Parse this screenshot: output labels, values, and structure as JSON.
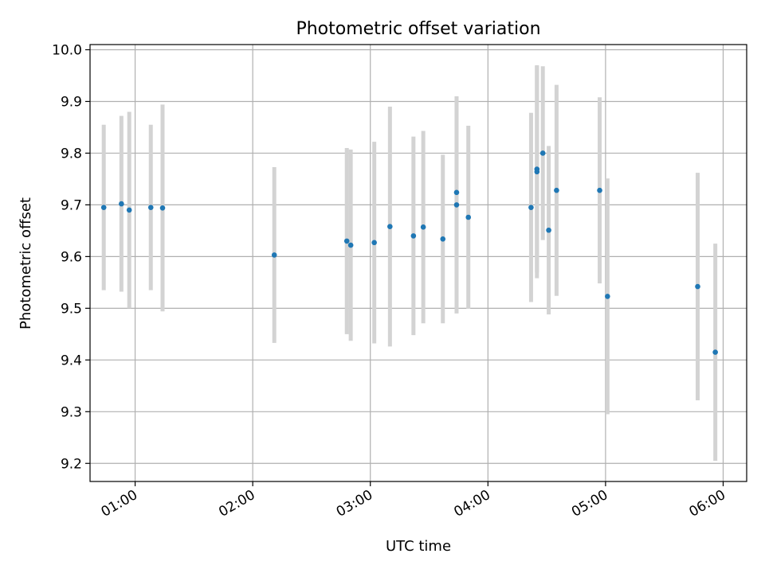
{
  "chart_data": {
    "type": "scatter",
    "title": "Photometric offset variation",
    "xlabel": "UTC time",
    "ylabel": "Photometric offset",
    "x_unit": "UTC time of day",
    "xlim": [
      "00:37",
      "06:12"
    ],
    "ylim": [
      9.165,
      10.01
    ],
    "grid": true,
    "x_ticks": [
      "01:00",
      "02:00",
      "03:00",
      "04:00",
      "05:00",
      "06:00"
    ],
    "y_ticks": [
      "9.2",
      "9.3",
      "9.4",
      "9.5",
      "9.6",
      "9.7",
      "9.8",
      "9.9",
      "10.0"
    ],
    "points": [
      {
        "x": "00:44",
        "y": 9.695,
        "err": 0.16
      },
      {
        "x": "00:53",
        "y": 9.702,
        "err": 0.17
      },
      {
        "x": "00:57",
        "y": 9.69,
        "err": 0.19
      },
      {
        "x": "01:08",
        "y": 9.695,
        "err": 0.16
      },
      {
        "x": "01:14",
        "y": 9.694,
        "err": 0.2
      },
      {
        "x": "02:11",
        "y": 9.603,
        "err": 0.17
      },
      {
        "x": "02:48",
        "y": 9.63,
        "err": 0.18
      },
      {
        "x": "02:50",
        "y": 9.622,
        "err": 0.185
      },
      {
        "x": "03:02",
        "y": 9.627,
        "err": 0.195
      },
      {
        "x": "03:10",
        "y": 9.658,
        "err": 0.232
      },
      {
        "x": "03:22",
        "y": 9.64,
        "err": 0.192
      },
      {
        "x": "03:27",
        "y": 9.657,
        "err": 0.186
      },
      {
        "x": "03:37",
        "y": 9.634,
        "err": 0.163
      },
      {
        "x": "03:44",
        "y": 9.724,
        "err": 0.185
      },
      {
        "x": "03:44",
        "y": 9.7,
        "err": 0.21
      },
      {
        "x": "03:50",
        "y": 9.676,
        "err": 0.177
      },
      {
        "x": "04:22",
        "y": 9.695,
        "err": 0.183
      },
      {
        "x": "04:25",
        "y": 9.764,
        "err": 0.206
      },
      {
        "x": "04:25",
        "y": 9.769,
        "err": 0.2
      },
      {
        "x": "04:28",
        "y": 9.8,
        "err": 0.168
      },
      {
        "x": "04:31",
        "y": 9.651,
        "err": 0.163
      },
      {
        "x": "04:35",
        "y": 9.728,
        "err": 0.204
      },
      {
        "x": "04:57",
        "y": 9.728,
        "err": 0.18
      },
      {
        "x": "05:01",
        "y": 9.523,
        "err": 0.228
      },
      {
        "x": "05:47",
        "y": 9.542,
        "err": 0.22
      },
      {
        "x": "05:56",
        "y": 9.415,
        "err": 0.21
      }
    ],
    "colors": {
      "point": "#1f77b4",
      "errorbar": "#d3d3d3",
      "grid": "#b0b0b0",
      "axis": "#000000"
    }
  }
}
